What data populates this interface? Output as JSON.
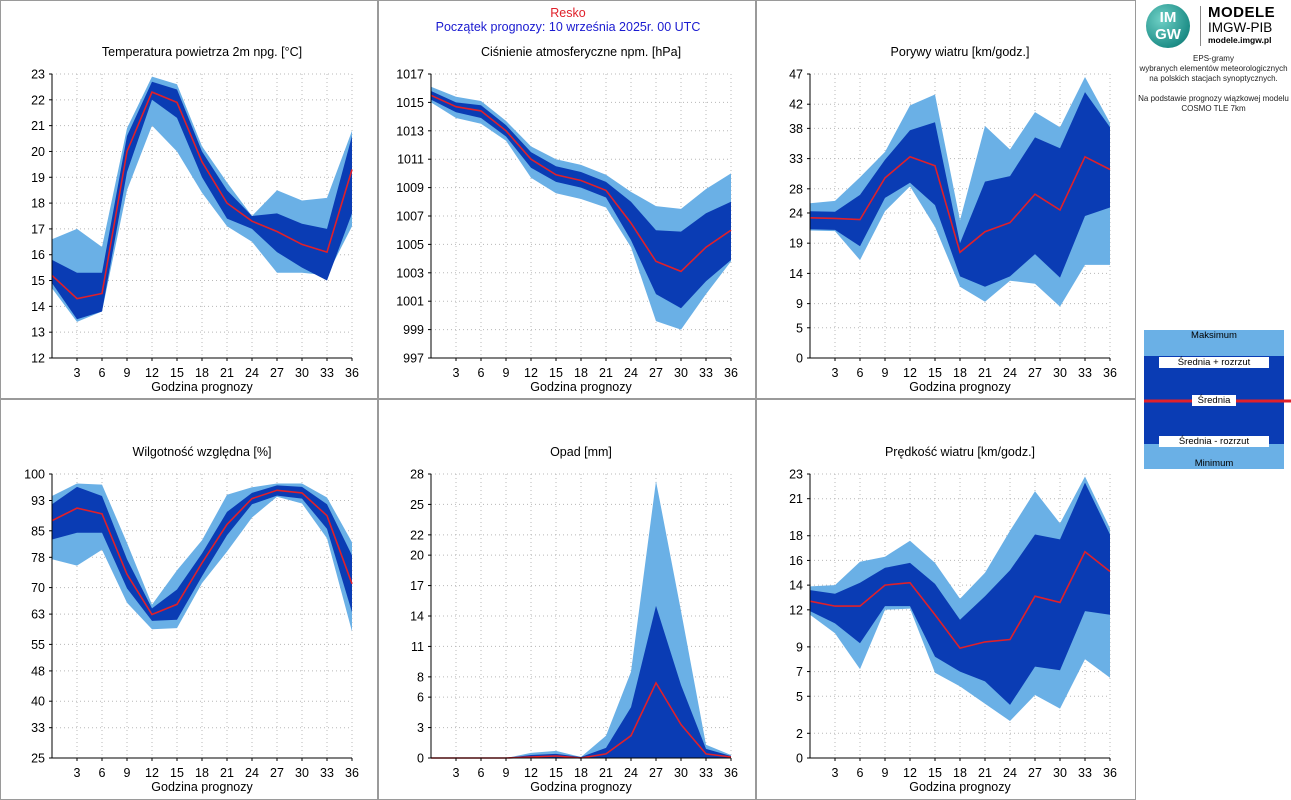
{
  "header": {
    "station": "Resko",
    "forecast_start": "Początek prognozy: 10 września 2025r. 00 UTC"
  },
  "logo": {
    "line1": "MODELE",
    "line2": "IMGW-PIB",
    "line3": "modele.imgw.pl",
    "mark_top": "IM",
    "mark_bottom": "GW"
  },
  "description": {
    "lines": [
      "EPS-gramy",
      "wybranych elementów meteorologicznych",
      "na polskich stacjach  synoptycznych.",
      "",
      "Na podstawie prognozy wiązkowej modelu",
      "COSMO TLE 7km"
    ]
  },
  "legend": {
    "max": "Maksimum",
    "mean_plus": "Średnia + rozrzut",
    "mean": "Średnia",
    "mean_minus": "Średnia - rozrzut",
    "min": "Minimum"
  },
  "colors": {
    "outer_band": "#6ab0e6",
    "inner_band": "#0a3cb4",
    "mean_line": "#e0202a",
    "grid": "#b8b8b8",
    "panel_border": "#9a9a9a"
  },
  "chart_data": [
    {
      "type": "area",
      "title": "Temperatura powietrza 2m npg. [°C]",
      "xlabel": "Godzina prognozy",
      "ylabel": "",
      "x": [
        0,
        3,
        6,
        9,
        12,
        15,
        18,
        21,
        24,
        27,
        30,
        33,
        36
      ],
      "xticks": [
        3,
        6,
        9,
        12,
        15,
        18,
        21,
        24,
        27,
        30,
        33,
        36
      ],
      "xlim": [
        0,
        36
      ],
      "ylim": [
        12,
        23
      ],
      "yticks": [
        12,
        13,
        14,
        15,
        16,
        17,
        18,
        19,
        20,
        21,
        22,
        23
      ],
      "ytick_labels": [
        "12",
        "13",
        "14",
        "15",
        "16",
        "17",
        "18",
        "19",
        "20",
        "21",
        "22",
        "23"
      ],
      "max": [
        16.6,
        17.0,
        16.3,
        20.9,
        22.9,
        22.6,
        20.2,
        18.8,
        17.5,
        18.5,
        18.1,
        18.2,
        20.8
      ],
      "upper": [
        15.8,
        15.3,
        15.3,
        20.6,
        22.7,
        22.4,
        20.0,
        18.5,
        17.5,
        17.6,
        17.2,
        17.0,
        20.6
      ],
      "mean": [
        15.2,
        14.3,
        14.5,
        20.0,
        22.3,
        21.9,
        19.6,
        18.0,
        17.3,
        16.9,
        16.4,
        16.1,
        19.3
      ],
      "lower": [
        14.9,
        13.5,
        13.8,
        19.2,
        22.0,
        21.3,
        19.0,
        17.4,
        17.0,
        16.1,
        15.5,
        15.0,
        17.6
      ],
      "min": [
        14.7,
        13.4,
        13.8,
        18.5,
        21.0,
        20.0,
        18.4,
        17.1,
        16.5,
        15.3,
        15.3,
        15.2,
        17.1
      ]
    },
    {
      "type": "area",
      "title": "Ciśnienie atmosferyczne npm. [hPa]",
      "xlabel": "Godzina prognozy",
      "ylabel": "",
      "x": [
        0,
        3,
        6,
        9,
        12,
        15,
        18,
        21,
        24,
        27,
        30,
        33,
        36
      ],
      "xticks": [
        3,
        6,
        9,
        12,
        15,
        18,
        21,
        24,
        27,
        30,
        33,
        36
      ],
      "xlim": [
        0,
        36
      ],
      "ylim": [
        997,
        1017
      ],
      "yticks": [
        997,
        999,
        1001,
        1003,
        1005,
        1007,
        1009,
        1011,
        1013,
        1015,
        1017
      ],
      "ytick_labels": [
        "997",
        "999",
        "1001",
        "1003",
        "1005",
        "1007",
        "1009",
        "1011",
        "1013",
        "1015",
        "1017"
      ],
      "max": [
        1016.1,
        1015.4,
        1015.1,
        1013.7,
        1011.9,
        1011.0,
        1010.6,
        1009.9,
        1008.7,
        1007.7,
        1007.5,
        1008.9,
        1010.0
      ],
      "upper": [
        1015.8,
        1015.0,
        1014.8,
        1013.4,
        1011.5,
        1010.5,
        1010.1,
        1009.4,
        1008.0,
        1006.0,
        1005.9,
        1007.2,
        1008.0
      ],
      "mean": [
        1015.5,
        1014.7,
        1014.4,
        1013.0,
        1011.0,
        1009.9,
        1009.5,
        1008.8,
        1006.5,
        1003.8,
        1003.1,
        1004.8,
        1006.0
      ],
      "lower": [
        1015.2,
        1014.3,
        1013.9,
        1012.6,
        1010.4,
        1009.4,
        1009.0,
        1008.3,
        1005.3,
        1001.5,
        1000.5,
        1002.4,
        1003.9
      ],
      "min": [
        1015.0,
        1013.9,
        1013.5,
        1012.3,
        1009.7,
        1008.6,
        1008.2,
        1007.6,
        1004.8,
        999.6,
        999.0,
        1001.5,
        1003.8
      ]
    },
    {
      "type": "area",
      "title": "Porywy wiatru [km/godz.]",
      "xlabel": "Godzina prognozy",
      "ylabel": "",
      "x": [
        0,
        3,
        6,
        9,
        12,
        15,
        18,
        21,
        24,
        27,
        30,
        33,
        36
      ],
      "xticks": [
        3,
        6,
        9,
        12,
        15,
        18,
        21,
        24,
        27,
        30,
        33,
        36
      ],
      "xlim": [
        0,
        36
      ],
      "ylim": [
        0,
        47
      ],
      "yticks": [
        0,
        5,
        9,
        14,
        19,
        24,
        28,
        33,
        38,
        42,
        47
      ],
      "ytick_labels": [
        "0",
        "5",
        "9",
        "14",
        "19",
        "24",
        "28",
        "33",
        "38",
        "42",
        "47"
      ],
      "max": [
        25.6,
        26.0,
        29.9,
        34.1,
        41.8,
        43.6,
        22.8,
        38.4,
        34.5,
        40.7,
        38.2,
        46.5,
        38.9
      ],
      "upper": [
        24.3,
        24.2,
        27.0,
        32.8,
        37.7,
        39.0,
        19.0,
        29.2,
        30.1,
        36.5,
        34.7,
        44.0,
        38.2
      ],
      "mean": [
        23.2,
        23.1,
        22.9,
        29.8,
        33.3,
        31.8,
        17.5,
        20.9,
        22.4,
        27.1,
        24.5,
        33.3,
        31.2
      ],
      "lower": [
        21.3,
        21.2,
        18.5,
        26.5,
        29.0,
        25.3,
        13.5,
        11.8,
        13.5,
        17.2,
        13.3,
        23.5,
        24.9
      ],
      "min": [
        21.1,
        21.0,
        16.2,
        24.3,
        28.4,
        21.7,
        11.8,
        9.3,
        12.8,
        12.3,
        8.5,
        15.4,
        15.4
      ]
    },
    {
      "type": "area",
      "title": "Wilgotność względna [%]",
      "xlabel": "Godzina prognozy",
      "ylabel": "",
      "x": [
        0,
        3,
        6,
        9,
        12,
        15,
        18,
        21,
        24,
        27,
        30,
        33,
        36
      ],
      "xticks": [
        3,
        6,
        9,
        12,
        15,
        18,
        21,
        24,
        27,
        30,
        33,
        36
      ],
      "xlim": [
        0,
        36
      ],
      "ylim": [
        25,
        100
      ],
      "yticks": [
        25,
        33,
        40,
        48,
        55,
        63,
        70,
        78,
        85,
        93,
        100
      ],
      "ytick_labels": [
        "25",
        "33",
        "40",
        "48",
        "55",
        "63",
        "70",
        "78",
        "85",
        "93",
        "100"
      ],
      "max": [
        94.2,
        97.5,
        97.2,
        81.8,
        65.5,
        74.6,
        82.5,
        94.5,
        96.5,
        97.5,
        97.5,
        93.8,
        82.0
      ],
      "upper": [
        92.0,
        96.6,
        94.2,
        77.5,
        64.5,
        69.5,
        79.0,
        90.0,
        95.0,
        97.0,
        96.6,
        92.0,
        78.5
      ],
      "mean": [
        87.7,
        91.0,
        89.5,
        73.5,
        62.9,
        65.6,
        76.5,
        86.7,
        93.5,
        95.7,
        95.0,
        89.0,
        71.0
      ],
      "lower": [
        82.7,
        84.5,
        84.5,
        69.8,
        61.2,
        61.5,
        73.0,
        83.8,
        92.0,
        94.3,
        93.5,
        85.5,
        63.5
      ],
      "min": [
        77.5,
        75.8,
        80.0,
        66.0,
        59.0,
        59.3,
        71.2,
        79.5,
        88.5,
        94.0,
        92.2,
        83.0,
        58.4
      ]
    },
    {
      "type": "area",
      "title": "Opad [mm]",
      "xlabel": "Godzina prognozy",
      "ylabel": "",
      "x": [
        0,
        3,
        6,
        9,
        12,
        15,
        18,
        21,
        24,
        27,
        30,
        33,
        36
      ],
      "xticks": [
        3,
        6,
        9,
        12,
        15,
        18,
        21,
        24,
        27,
        30,
        33,
        36
      ],
      "xlim": [
        0,
        36
      ],
      "ylim": [
        0,
        28
      ],
      "yticks": [
        0,
        3,
        6,
        8,
        11,
        14,
        17,
        20,
        22,
        25,
        28
      ],
      "ytick_labels": [
        "0",
        "3",
        "6",
        "8",
        "11",
        "14",
        "17",
        "20",
        "22",
        "25",
        "28"
      ],
      "max": [
        0.0,
        0.0,
        0.0,
        0.0,
        0.5,
        0.7,
        0.1,
        2.2,
        8.5,
        27.3,
        14.5,
        1.3,
        0.3
      ],
      "upper": [
        0.0,
        0.0,
        0.0,
        0.0,
        0.3,
        0.4,
        0.1,
        1.0,
        5.0,
        15.0,
        7.2,
        0.9,
        0.2
      ],
      "mean": [
        0.0,
        0.0,
        0.0,
        0.0,
        0.1,
        0.2,
        0.0,
        0.4,
        2.2,
        7.4,
        3.3,
        0.4,
        0.1
      ],
      "lower": [
        0.0,
        0.0,
        0.0,
        0.0,
        0.0,
        0.0,
        0.0,
        0.0,
        0.0,
        0.0,
        0.0,
        0.0,
        0.0
      ],
      "min": [
        0.0,
        0.0,
        0.0,
        0.0,
        0.0,
        0.0,
        0.0,
        0.0,
        0.0,
        0.0,
        0.0,
        0.0,
        0.0
      ]
    },
    {
      "type": "area",
      "title": "Prędkość wiatru [km/godz.]",
      "xlabel": "Godzina prognozy",
      "ylabel": "",
      "x": [
        0,
        3,
        6,
        9,
        12,
        15,
        18,
        21,
        24,
        27,
        30,
        33,
        36
      ],
      "xticks": [
        3,
        6,
        9,
        12,
        15,
        18,
        21,
        24,
        27,
        30,
        33,
        36
      ],
      "xlim": [
        0,
        36
      ],
      "ylim": [
        0,
        23
      ],
      "yticks": [
        0,
        2,
        5,
        7,
        9,
        12,
        14,
        16,
        18,
        21,
        23
      ],
      "ytick_labels": [
        "0",
        "2",
        "5",
        "7",
        "9",
        "12",
        "14",
        "16",
        "18",
        "21",
        "23"
      ],
      "max": [
        13.9,
        14.0,
        15.9,
        16.3,
        17.6,
        15.8,
        12.9,
        15.0,
        18.4,
        21.6,
        19.0,
        22.8,
        18.6
      ],
      "upper": [
        13.6,
        13.3,
        14.2,
        15.4,
        15.8,
        14.1,
        11.2,
        13.1,
        15.2,
        18.1,
        17.7,
        22.3,
        18.1
      ],
      "mean": [
        12.7,
        12.3,
        12.3,
        14.0,
        14.2,
        11.6,
        8.9,
        9.4,
        9.6,
        13.1,
        12.6,
        16.7,
        15.1
      ],
      "lower": [
        11.9,
        10.9,
        9.3,
        12.3,
        12.3,
        8.2,
        7.0,
        6.2,
        4.3,
        7.4,
        7.1,
        11.9,
        11.6
      ],
      "min": [
        11.6,
        10.1,
        7.2,
        12.0,
        12.1,
        6.9,
        5.8,
        4.4,
        3.0,
        5.1,
        4.0,
        8.0,
        6.5
      ]
    }
  ]
}
